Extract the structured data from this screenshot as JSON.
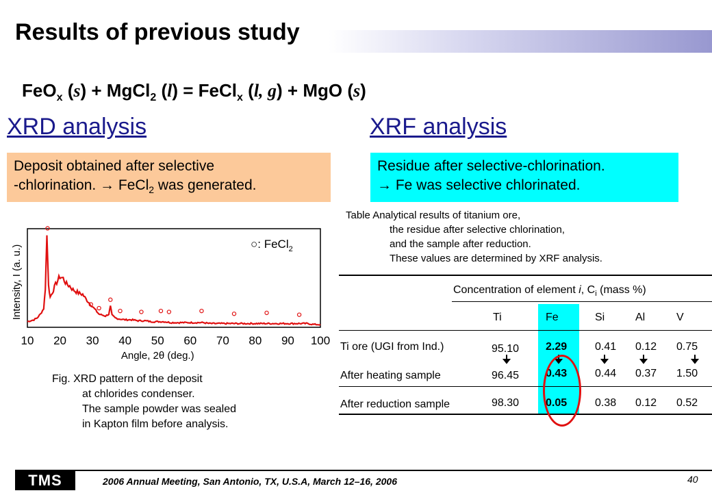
{
  "title": "Results of previous study",
  "equation": {
    "p1": "FeO",
    "p2": "x",
    "p3": " (",
    "p4": "s",
    "p5": ") + MgCl",
    "p6": "2",
    "p7": " (",
    "p8": "l",
    "p9": ") = FeCl",
    "p10": "x",
    "p11": " (",
    "p12": "l, g",
    "p13": ") + MgO (",
    "p14": "s",
    "p15": ")"
  },
  "xrd": {
    "heading": "XRD analysis",
    "box_line1": "Deposit obtained after selective",
    "box_line2a": "-chlorination. → FeCl",
    "box_line2b": "2",
    "box_line2c": " was generated.",
    "caption": [
      "Fig. XRD pattern of the deposit",
      "at chlorides condenser.",
      "The sample powder was sealed",
      "in Kapton film before analysis."
    ]
  },
  "xrf": {
    "heading": "XRF analysis",
    "box_line1": "Residue after selective-chlorination.",
    "box_line2": "→ Fe was selective chlorinated.",
    "caption": [
      "Table  Analytical results of titanium ore,",
      "the residue after selective chlorination,",
      "and the sample after reduction.",
      "These values are determined by  XRF analysis."
    ]
  },
  "table": {
    "header": "Concentration of element ",
    "header_i": "i",
    "header_mid": ", C",
    "header_sub": "i",
    "header_end": " (mass %)",
    "columns": [
      "Ti",
      "Fe",
      "Si",
      "Al",
      "V"
    ],
    "rows": [
      {
        "label": "Ti ore (UGI from Ind.)",
        "values": [
          "95.10",
          "2.29",
          "0.41",
          "0.12",
          "0.75"
        ]
      },
      {
        "label": "After heating sample",
        "values": [
          "96.45",
          "0.43",
          "0.44",
          "0.37",
          "1.50"
        ]
      },
      {
        "label": "After reduction sample",
        "values": [
          "98.30",
          "0.05",
          "0.38",
          "0.12",
          "0.52"
        ]
      }
    ],
    "highlight_color": "#00ffff",
    "circle_color": "#e01010"
  },
  "chart_data": {
    "type": "line",
    "xlabel": "Angle, 2θ (deg.)",
    "ylabel": "Intensity, I (a. u.)",
    "xlim": [
      10,
      100
    ],
    "x_ticks": [
      "10",
      "20",
      "30",
      "40",
      "50",
      "60",
      "70",
      "80",
      "90",
      "100"
    ],
    "legend": "○: FeCl",
    "legend_sub": "2",
    "series_color": "#e01010",
    "series": [
      {
        "x": [
          10,
          11,
          12,
          13,
          14,
          15,
          15.5,
          16,
          16.5,
          17,
          18,
          19,
          20,
          21,
          22,
          23,
          24,
          25,
          26,
          27,
          28,
          29,
          30,
          31,
          32,
          33,
          34,
          35,
          35.5,
          36,
          37,
          38,
          40,
          42,
          44,
          46,
          48,
          50,
          52,
          54,
          56,
          58,
          60,
          62,
          64,
          66,
          68,
          70,
          72,
          74,
          76,
          78,
          80,
          82,
          84,
          86,
          88,
          90,
          92,
          94,
          96,
          98,
          100
        ],
        "y": [
          6,
          7,
          8,
          10,
          14,
          20,
          40,
          98,
          45,
          32,
          40,
          48,
          54,
          52,
          46,
          44,
          40,
          38,
          36,
          35,
          30,
          26,
          22,
          18,
          14,
          13,
          12,
          14,
          22,
          13,
          10,
          9,
          8,
          8,
          7,
          7,
          6,
          6,
          6,
          5,
          5,
          5,
          5,
          5,
          5,
          4,
          4,
          4,
          4,
          4,
          4,
          4,
          4,
          4,
          4,
          4,
          4,
          4,
          4,
          4,
          4,
          3,
          3
        ]
      }
    ],
    "marker_peaks_x": [
      16.2,
      29.5,
      32,
      35.5,
      38.5,
      45,
      51,
      53.5,
      63.5,
      73.5,
      83.5,
      93.5
    ],
    "marker_peaks_y": [
      101,
      20,
      16,
      25,
      13,
      12,
      13,
      12,
      13,
      10,
      11,
      9
    ]
  },
  "footer": {
    "logo": "TMS",
    "text": "2006 Annual Meeting, San Antonio, TX, U.S.A, March 12–16, 2006",
    "page": "40"
  }
}
